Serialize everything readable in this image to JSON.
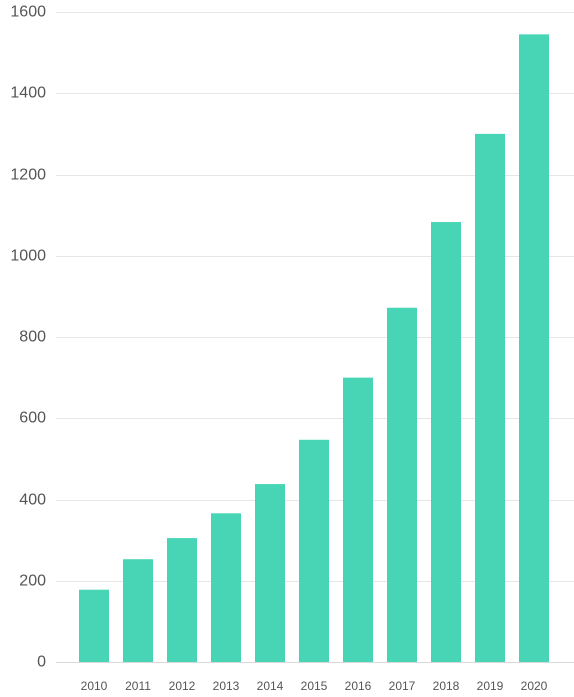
{
  "chart_data": {
    "type": "bar",
    "categories": [
      "2010",
      "2011",
      "2012",
      "2013",
      "2014",
      "2015",
      "2016",
      "2017",
      "2018",
      "2019",
      "2020"
    ],
    "values": [
      178,
      253,
      305,
      366,
      438,
      547,
      700,
      872,
      1083,
      1300,
      1545
    ],
    "ylim": [
      0,
      1600
    ],
    "yticks": [
      0,
      200,
      400,
      600,
      800,
      1000,
      1200,
      1400,
      1600
    ],
    "grid": true,
    "bar_color": "#48d5b5"
  }
}
